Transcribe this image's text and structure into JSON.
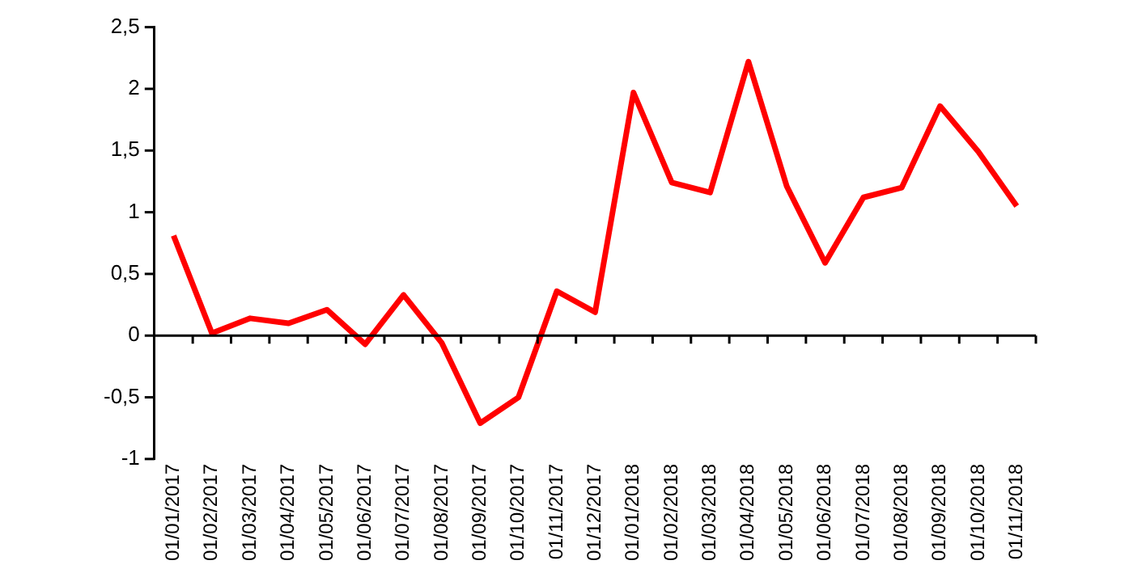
{
  "chart_data": {
    "type": "line",
    "categories": [
      "01/01/2017",
      "01/02/2017",
      "01/03/2017",
      "01/04/2017",
      "01/05/2017",
      "01/06/2017",
      "01/07/2017",
      "01/08/2017",
      "01/09/2017",
      "01/10/2017",
      "01/11/2017",
      "01/12/2017",
      "01/01/2018",
      "01/02/2018",
      "01/03/2018",
      "01/04/2018",
      "01/05/2018",
      "01/06/2018",
      "01/07/2018",
      "01/08/2018",
      "01/09/2018",
      "01/10/2018",
      "01/11/2018"
    ],
    "series": [
      {
        "color": "#ff0000",
        "values": [
          0.81,
          0.02,
          0.14,
          0.1,
          0.21,
          -0.07,
          0.33,
          -0.06,
          -0.71,
          -0.5,
          0.36,
          0.19,
          1.97,
          1.24,
          1.16,
          2.22,
          1.21,
          0.59,
          1.12,
          1.2,
          1.86,
          1.49,
          1.05
        ]
      }
    ],
    "ylim": [
      -1,
      2.5
    ],
    "yticks": [
      -1,
      {
        "value": -0.5,
        "label": "-0,5"
      },
      0,
      {
        "value": 0.5,
        "label": "0,5"
      },
      1,
      {
        "value": 1.5,
        "label": "1,5"
      },
      2,
      {
        "value": 2.5,
        "label": "2,5"
      }
    ],
    "legend": false,
    "marker": "none",
    "line_style": "solid"
  }
}
